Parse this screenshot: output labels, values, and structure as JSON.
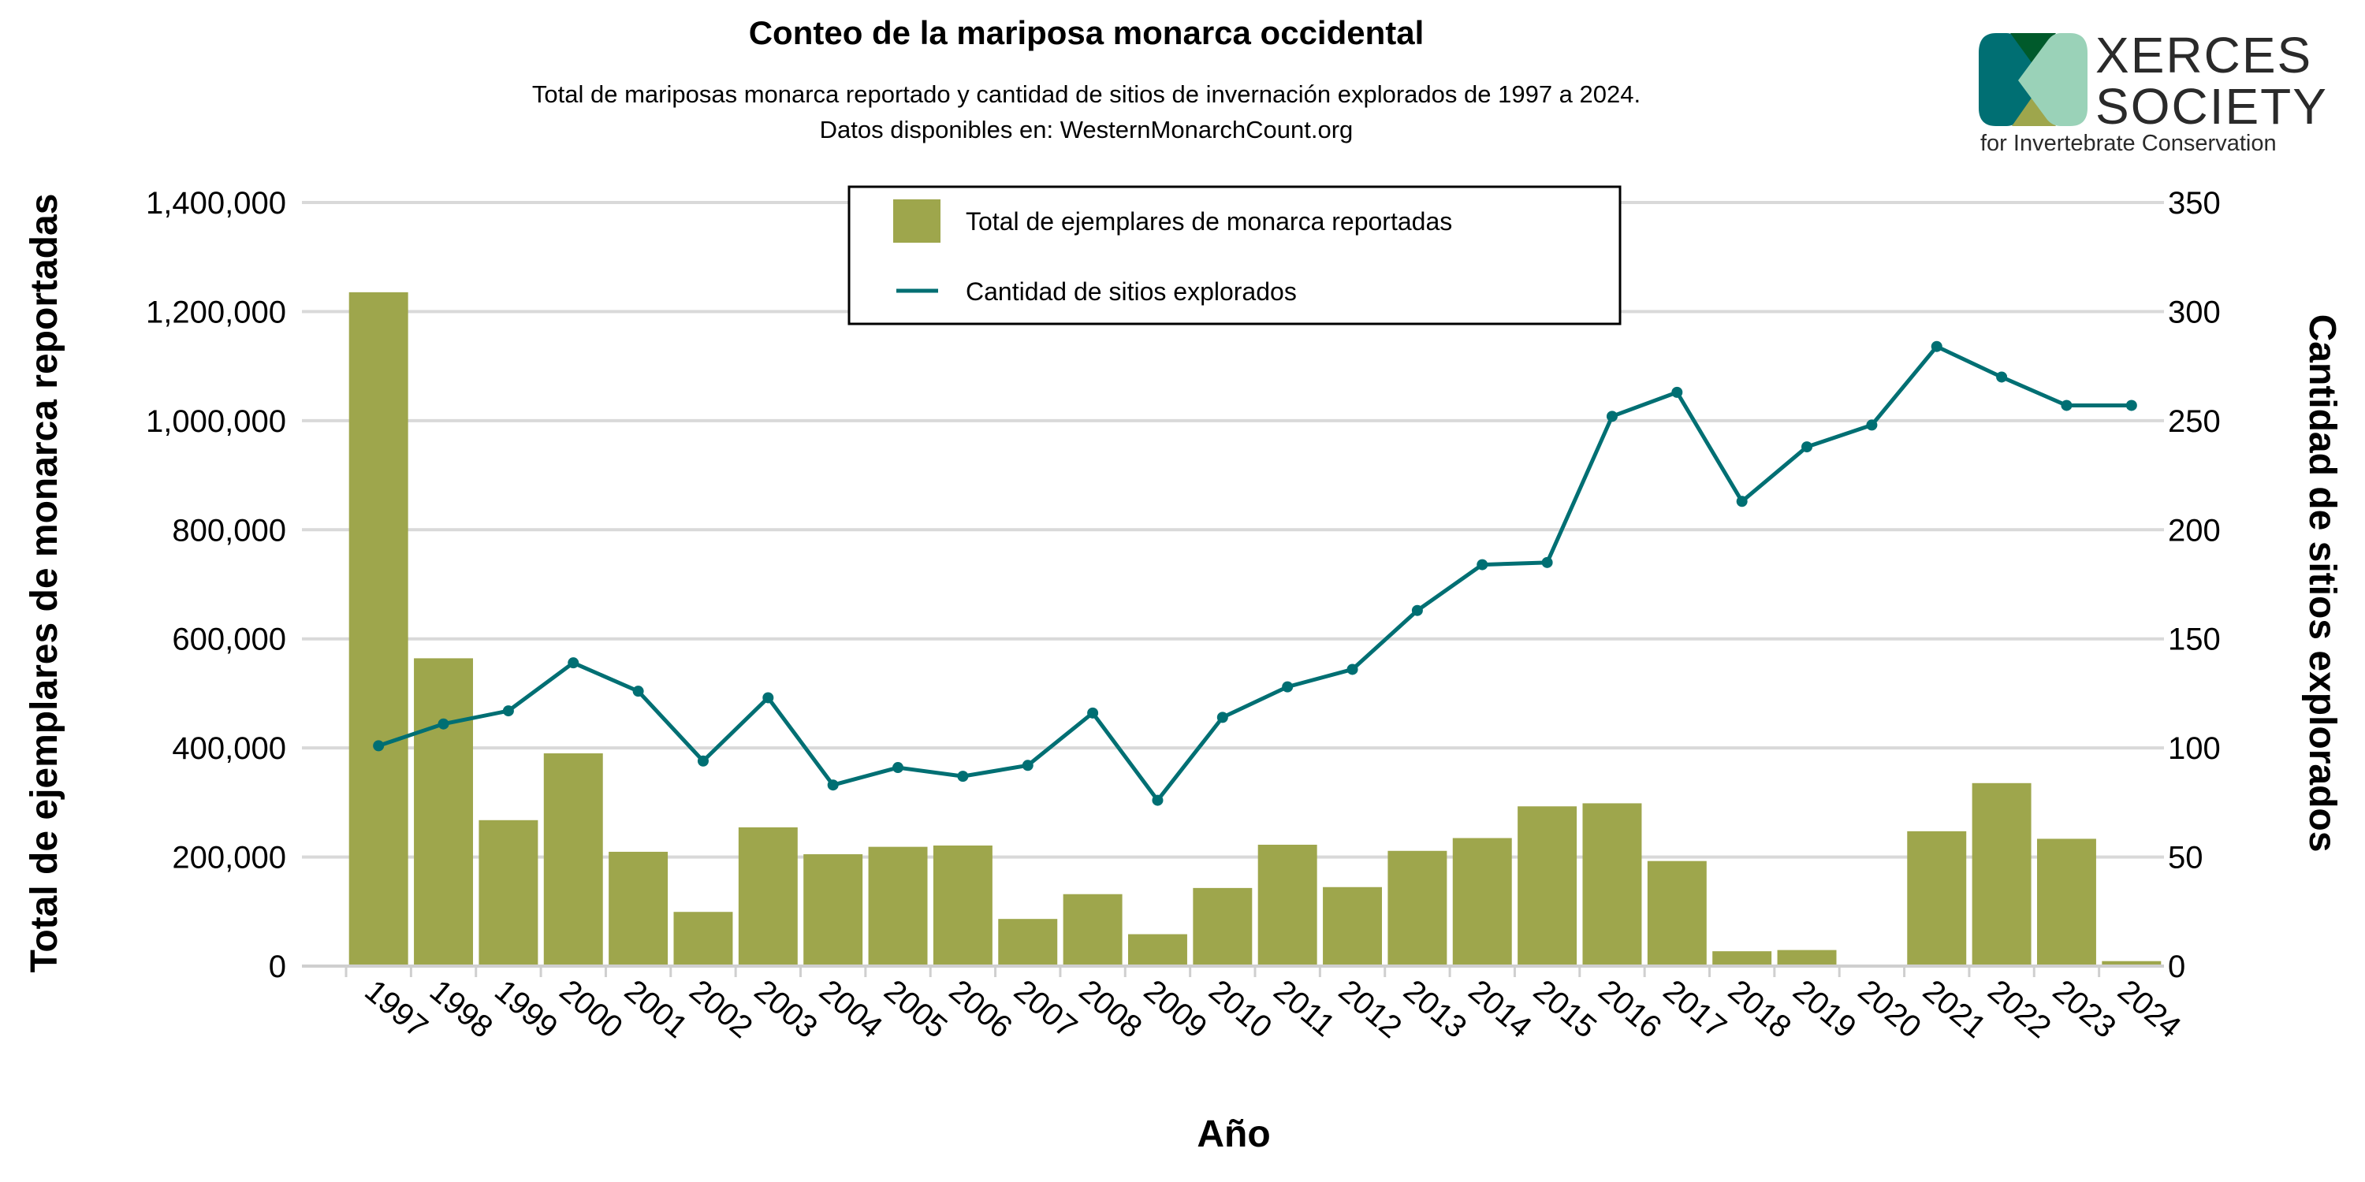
{
  "chart_data": {
    "type": "bar+line",
    "title": "Conteo de la mariposa monarca occidental",
    "subtitle_lines": [
      "Total de mariposas monarca reportado y cantidad de sitios de invernación explorados de 1997 a 2024.",
      "Datos disponibles en: WesternMonarchCount.org"
    ],
    "xlabel": "Año",
    "ylabel_left": "Total de ejemplares de monarca reportadas",
    "ylabel_right": "Cantidad de sitios explorados",
    "ylim_left": [
      0,
      1400000
    ],
    "ylim_right": [
      0,
      350
    ],
    "yticks_left": [
      "0",
      "200,000",
      "400,000",
      "600,000",
      "800,000",
      "1,000,000",
      "1,200,000",
      "1,400,000"
    ],
    "yticks_right": [
      "0",
      "50",
      "100",
      "150",
      "200",
      "250",
      "300",
      "350"
    ],
    "grid": true,
    "legend_placement": "top-center",
    "categories": [
      "1997",
      "1998",
      "1999",
      "2000",
      "2001",
      "2002",
      "2003",
      "2004",
      "2005",
      "2006",
      "2007",
      "2008",
      "2009",
      "2010",
      "2011",
      "2012",
      "2013",
      "2014",
      "2015",
      "2016",
      "2017",
      "2018",
      "2019",
      "2020",
      "2021",
      "2022",
      "2023",
      "2024"
    ],
    "series": [
      {
        "name": "Total de ejemplares de monarca reportadas",
        "type": "bar",
        "axis": "left",
        "color": "#9ea64c",
        "values": [
          1235490,
          564349,
          267574,
          390057,
          209570,
          99353,
          254378,
          205085,
          218679,
          221058,
          86437,
          131889,
          58468,
          143204,
          222525,
          144812,
          211275,
          234731,
          292888,
          298464,
          192624,
          27218,
          29418,
          1899,
          247237,
          335479,
          233394,
          9119
        ]
      },
      {
        "name": "Cantidad de sitios explorados",
        "type": "line",
        "axis": "right",
        "color": "#006f73",
        "values": [
          101,
          111,
          117,
          139,
          126,
          94,
          123,
          83,
          91,
          87,
          92,
          116,
          76,
          114,
          128,
          136,
          163,
          184,
          185,
          252,
          263,
          213,
          238,
          248,
          284,
          270,
          257,
          257
        ]
      }
    ]
  },
  "logo": {
    "line1": "XERCES",
    "line2": "SOCIETY",
    "tagline": "for Invertebrate Conservation",
    "colors": [
      "#006f73",
      "#005a2b",
      "#9ea64c",
      "#9ad2b8"
    ]
  }
}
